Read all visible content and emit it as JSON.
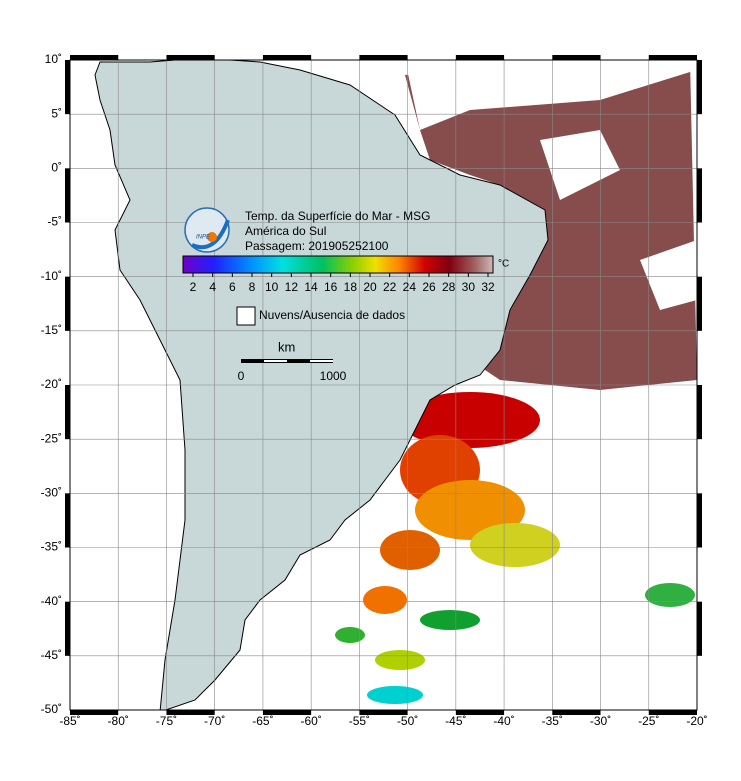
{
  "header": {
    "logo": "INPE",
    "title": "Temp. da Superfície do Mar - MSG",
    "region": "América do Sul",
    "pass": "Passagem: 201905252100"
  },
  "colorbar": {
    "unit": "°C",
    "ticks": [
      2,
      4,
      6,
      8,
      10,
      12,
      14,
      16,
      18,
      20,
      22,
      24,
      26,
      28,
      30,
      32
    ]
  },
  "legend": {
    "label": "Nuvens/Ausencia de dados"
  },
  "scale": {
    "unit": "km",
    "labels": [
      "0",
      "1000"
    ]
  },
  "lat_ticks": [
    {
      "value": 10,
      "label": "10˚"
    },
    {
      "value": 5,
      "label": "5˚"
    },
    {
      "value": 0,
      "label": "0˚"
    },
    {
      "value": -5,
      "label": "-5˚"
    },
    {
      "value": -10,
      "label": "-10˚"
    },
    {
      "value": -15,
      "label": "-15˚"
    },
    {
      "value": -20,
      "label": "-20˚"
    },
    {
      "value": -25,
      "label": "-25˚"
    },
    {
      "value": -30,
      "label": "-30˚"
    },
    {
      "value": -35,
      "label": "-35˚"
    },
    {
      "value": -40,
      "label": "-40˚"
    },
    {
      "value": -45,
      "label": "-45˚"
    },
    {
      "value": -50,
      "label": "-50˚"
    }
  ],
  "lon_ticks": [
    {
      "value": -85,
      "label": "-85˚"
    },
    {
      "value": -80,
      "label": "-80˚"
    },
    {
      "value": -75,
      "label": "-75˚"
    },
    {
      "value": -70,
      "label": "-70˚"
    },
    {
      "value": -65,
      "label": "-65˚"
    },
    {
      "value": -60,
      "label": "-60˚"
    },
    {
      "value": -55,
      "label": "-55˚"
    },
    {
      "value": -50,
      "label": "-50˚"
    },
    {
      "value": -45,
      "label": "-45˚"
    },
    {
      "value": -40,
      "label": "-40˚"
    },
    {
      "value": -35,
      "label": "-35˚"
    },
    {
      "value": -30,
      "label": "-30˚"
    },
    {
      "value": -25,
      "label": "-25˚"
    },
    {
      "value": -20,
      "label": "-20˚"
    }
  ]
}
